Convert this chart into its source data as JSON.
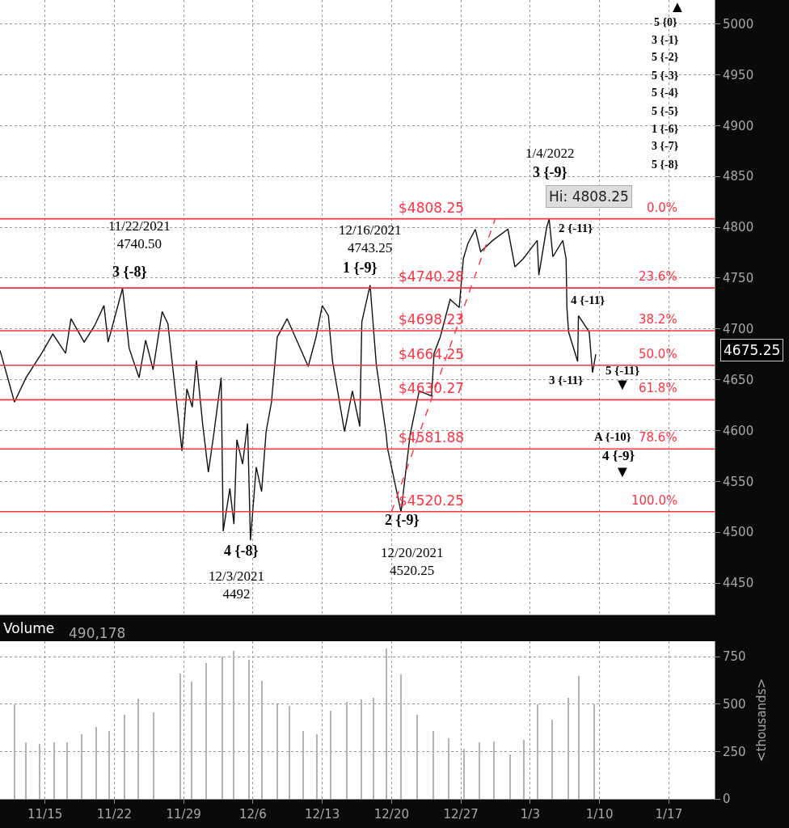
{
  "chart_data": [
    {
      "type": "line",
      "xlim": [
        "2021-11-10T11:00",
        "2022-01-21T15:00"
      ],
      "ylim": [
        4419,
        5023.55
      ],
      "xticks": [
        {
          "value": "2021-11-15",
          "label": null
        },
        {
          "value": "2021-11-22",
          "label": null
        },
        {
          "value": "2021-11-29",
          "label": null
        },
        {
          "value": "2021-12-06",
          "label": null
        },
        {
          "value": "2021-12-13",
          "label": null
        },
        {
          "value": "2021-12-20",
          "label": null
        },
        {
          "value": "2021-12-27",
          "label": null
        },
        {
          "value": "2022-01-03",
          "label": null
        },
        {
          "value": "2022-01-10",
          "label": null
        },
        {
          "value": "2022-01-17",
          "label": null
        }
      ],
      "yticks": [
        4450,
        4500,
        4550,
        4600,
        4650,
        4700,
        4750,
        4800,
        4850,
        4900,
        4950,
        5000
      ],
      "tick_labels": "y",
      "grid": true,
      "series": [
        {
          "color": "#111111",
          "line_style": "solid",
          "x": [
            "2021-11-10T11:00",
            "2021-11-11T22:00",
            "2021-11-13T02:00",
            "2021-11-14T16:00",
            "2021-11-15T19:00",
            "2021-11-17T02:00",
            "2021-11-17T15:00",
            "2021-11-18T23:00",
            "2021-11-20T00:00",
            "2021-11-20T23:00",
            "2021-11-21T09:00",
            "2021-11-22T20:00",
            "2021-11-23T12:00",
            "2021-11-24T12:00",
            "2021-11-25T04:00",
            "2021-11-25T22:00",
            "2021-11-26T20:00",
            "2021-11-27T10:00",
            "2021-11-28T20:00",
            "2021-11-29T08:00",
            "2021-11-29T21:00",
            "2021-11-30T07:00",
            "2021-11-30T22:00",
            "2021-12-01T12:00",
            "2021-12-02T01:00",
            "2021-12-02T19:00",
            "2021-12-03T00:00",
            "2021-12-03T16:00",
            "2021-12-04T02:00",
            "2021-12-04T09:00",
            "2021-12-04T23:00",
            "2021-12-05T11:00",
            "2021-12-05T18:00",
            "2021-12-06T08:00",
            "2021-12-06T21:00",
            "2021-12-07T08:00",
            "2021-12-07T21:00",
            "2021-12-08T11:00",
            "2021-12-09T11:00",
            "2021-12-10T12:00",
            "2021-12-11T14:00",
            "2021-12-12T09:00",
            "2021-12-13T00:00",
            "2021-12-13T15:00",
            "2021-12-14T01:00",
            "2021-12-15T06:00",
            "2021-12-16T01:00",
            "2021-12-16T19:00",
            "2021-12-17T00:00",
            "2021-12-17T20:00",
            "2021-12-18T11:00",
            "2021-12-19T11:00",
            "2021-12-19T14:00",
            "2021-12-20T23:00",
            "2021-12-21T21:00",
            "2021-12-22T19:00",
            "2021-12-24T01:00",
            "2021-12-24T07:00",
            "2021-12-24T22:00",
            "2021-12-25T22:00",
            "2021-12-26T20:00",
            "2021-12-27T06:00",
            "2021-12-27T17:00",
            "2021-12-28T11:00",
            "2021-12-29T00:00",
            "2021-12-30T05:00",
            "2021-12-31T18:00",
            "2022-01-01T11:00",
            "2022-01-02T07:00",
            "2022-01-03T17:00",
            "2022-01-03T21:00",
            "2022-01-04T16:00",
            "2022-01-04T22:00",
            "2022-01-05T07:00",
            "2022-01-06T07:00",
            "2022-01-06T15:00",
            "2022-01-06T17:00",
            "2022-01-06T21:00",
            "2022-01-07T19:00",
            "2022-01-07T21:00",
            "2022-01-08T23:00",
            "2022-01-09T07:00",
            "2022-01-09T15:00"
          ],
          "values": [
            4679,
            4628,
            4652,
            4676,
            4695,
            4676,
            4710,
            4687,
            4703,
            4723,
            4687,
            4740,
            4681,
            4652,
            4689,
            4660,
            4717,
            4705,
            4580,
            4641,
            4623,
            4669,
            4607,
            4559,
            4596,
            4652,
            4501,
            4543,
            4508,
            4591,
            4567,
            4607,
            4492,
            4564,
            4540,
            4599,
            4628,
            4692,
            4710,
            4687,
            4663,
            4692,
            4723,
            4713,
            4668,
            4599,
            4639,
            4604,
            4707,
            4743,
            4665,
            4596,
            4583,
            4520,
            4596,
            4639,
            4634,
            4676,
            4692,
            4729,
            4721,
            4769,
            4784,
            4798,
            4776,
            4787,
            4798,
            4761,
            4769,
            4787,
            4753,
            4800,
            4808,
            4771,
            4787,
            4769,
            4721,
            4697,
            4668,
            4713,
            4697,
            4657,
            4675
          ]
        },
        {
          "color": "#ff3344",
          "line_style": "dashed",
          "x": [
            "2021-12-20T00:00",
            "2021-12-30T11:00"
          ],
          "values": [
            4520,
            4808
          ]
        }
      ],
      "ref_lines": [
        {
          "axis": "y",
          "value": 4808.25,
          "label": "$4808.25",
          "color": "#ff3344"
        },
        {
          "axis": "y",
          "value": 4740.28,
          "label": "$4740.28",
          "color": "#ff3344"
        },
        {
          "axis": "y",
          "value": 4698.23,
          "label": "$4698.23",
          "color": "#ff3344"
        },
        {
          "axis": "y",
          "value": 4664.25,
          "label": "$4664.25",
          "color": "#ff3344"
        },
        {
          "axis": "y",
          "value": 4630.27,
          "label": "$4630.27",
          "color": "#ff3344"
        },
        {
          "axis": "y",
          "value": 4581.88,
          "label": "$4581.88",
          "color": "#ff3344"
        },
        {
          "axis": "y",
          "value": 4520.25,
          "label": "$4520.25",
          "color": "#ff3344"
        }
      ],
      "annotations": [
        "11/22/2021\n4740.50",
        "3 {-8}",
        "12/16/2021\n4743.25",
        "1 {-9}",
        "4 {-8}",
        "12/3/2021\n4492",
        "2 {-9}",
        "12/20/2021\n4520.25",
        "1/4/2022",
        "3 {-9}",
        "Hi: 4808.25",
        "2 {-11}",
        "4 {-11}",
        "3 {-11}",
        "5 {-11}",
        "▼",
        "A {-10}",
        "4 {-9}",
        "▼",
        "5 {0}",
        "3 {-1}",
        "5 {-2}",
        "5 {-3}",
        "5 {-4}",
        "5 {-5}",
        "1 {-6}",
        "3 {-7}",
        "5 {-8}",
        "▲",
        "4675.25",
        {
          "text": "0.0%",
          "x": "2022-01-18T00:00",
          "y": 4808.25
        },
        {
          "text": "23.6%",
          "x": "2022-01-18T00:00",
          "y": 4740.28
        },
        {
          "text": "38.2%",
          "x": "2022-01-18T00:00",
          "y": 4698.23
        },
        {
          "text": "50.0%",
          "x": "2022-01-18T00:00",
          "y": 4664.25
        },
        {
          "text": "61.8%",
          "x": "2022-01-18T00:00",
          "y": 4630.27
        },
        {
          "text": "78.6%",
          "x": "2022-01-18T00:00",
          "y": 4581.88
        },
        {
          "text": "100.0%",
          "x": "2022-01-18T00:00",
          "y": 4520.25
        }
      ]
    },
    {
      "type": "bar",
      "title": "Volume",
      "ylabel": "<thousands>",
      "xlim": [
        "2021-11-10T11:00",
        "2022-01-21T15:00"
      ],
      "ylim": [
        0,
        832
      ],
      "xticks": [
        {
          "value": "2021-11-15",
          "label": "11/15"
        },
        {
          "value": "2021-11-22",
          "label": "11/22"
        },
        {
          "value": "2021-11-29",
          "label": "11/29"
        },
        {
          "value": "2021-12-06",
          "label": "12/6"
        },
        {
          "value": "2021-12-13",
          "label": "12/13"
        },
        {
          "value": "2021-12-20",
          "label": "12/20"
        },
        {
          "value": "2021-12-27",
          "label": "12/27"
        },
        {
          "value": "2022-01-03",
          "label": "1/3"
        },
        {
          "value": "2022-01-10",
          "label": "1/10"
        },
        {
          "value": "2022-01-17",
          "label": "1/17"
        }
      ],
      "yticks": [
        0,
        250,
        500,
        750
      ],
      "grid": true,
      "annotations": [
        "490,178"
      ],
      "x": [
        "2021-11-11T23:00",
        "2021-11-13T02:00",
        "2021-11-14T12:00",
        "2021-11-15T23:00",
        "2021-11-17T07:00",
        "2021-11-18T18:00",
        "2021-11-20T04:00",
        "2021-11-21T12:00",
        "2021-11-23T02:00",
        "2021-11-24T10:00",
        "2021-11-26T00:00",
        "2021-11-28T16:00",
        "2021-11-29T19:00",
        "2021-12-01T08:00",
        "2021-12-02T23:00",
        "2021-12-04T02:00",
        "2021-12-05T14:00",
        "2021-12-06T23:00",
        "2021-12-08T12:00",
        "2021-12-09T17:00",
        "2021-12-11T03:00",
        "2021-12-12T11:00",
        "2021-12-13T21:00",
        "2021-12-15T12:00",
        "2021-12-16T23:00",
        "2021-12-18T04:00",
        "2021-12-19T12:00",
        "2021-12-20T23:00",
        "2021-12-22T14:00",
        "2021-12-24T05:00",
        "2021-12-25T18:00",
        "2021-12-27T08:00",
        "2021-12-28T22:00",
        "2021-12-30T09:00",
        "2022-01-01T00:00",
        "2022-01-02T09:00",
        "2022-01-03T19:00",
        "2022-01-05T05:00",
        "2022-01-06T21:00",
        "2022-01-07T23:00",
        "2022-01-09T11:00"
      ],
      "series": [
        {
          "color": "#b4b4b4",
          "values": [
            500,
            300,
            290,
            300,
            300,
            340,
            380,
            360,
            445,
            530,
            455,
            660,
            620,
            715,
            750,
            780,
            735,
            625,
            500,
            490,
            360,
            340,
            465,
            510,
            525,
            535,
            795,
            655,
            445,
            360,
            320,
            265,
            300,
            305,
            235,
            310,
            500,
            420,
            535,
            650,
            500
          ]
        }
      ]
    }
  ]
}
